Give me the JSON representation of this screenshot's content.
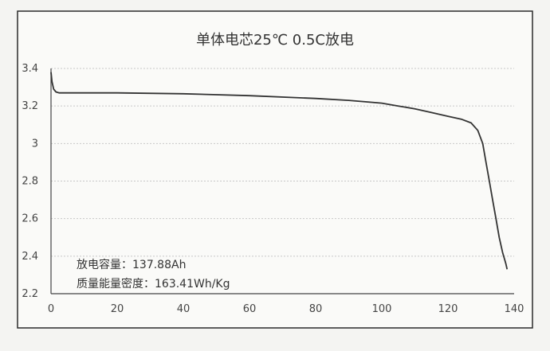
{
  "chart_data": {
    "type": "line",
    "title": "单体电芯25℃ 0.5C放电",
    "xlabel": "",
    "ylabel": "",
    "xlim": [
      0,
      140
    ],
    "ylim": [
      2.2,
      3.4
    ],
    "x_ticks": [
      "0",
      "20",
      "40",
      "60",
      "80",
      "100",
      "120",
      "140"
    ],
    "y_ticks": [
      "2.2",
      "2.4",
      "2.6",
      "2.8",
      "3",
      "3.2",
      "3.4"
    ],
    "grid": true,
    "legend": "none",
    "annotations": [
      "放电容量：137.88Ah",
      "质量能量密度：163.41Wh/Kg"
    ],
    "series": [
      {
        "color": "#333333",
        "x": [
          0,
          0.3,
          0.8,
          1.5,
          2.5,
          4,
          8,
          20,
          40,
          60,
          80,
          90,
          100,
          105,
          110,
          115,
          120,
          124,
          127,
          129,
          130.5,
          131.5,
          132.5,
          133.5,
          134.5,
          135.5,
          136.5,
          137.5,
          137.88
        ],
        "y": [
          3.38,
          3.33,
          3.29,
          3.275,
          3.27,
          3.27,
          3.27,
          3.27,
          3.265,
          3.255,
          3.24,
          3.23,
          3.215,
          3.2,
          3.185,
          3.165,
          3.145,
          3.13,
          3.11,
          3.07,
          3.0,
          2.9,
          2.8,
          2.7,
          2.6,
          2.5,
          2.42,
          2.36,
          2.33
        ]
      }
    ]
  }
}
